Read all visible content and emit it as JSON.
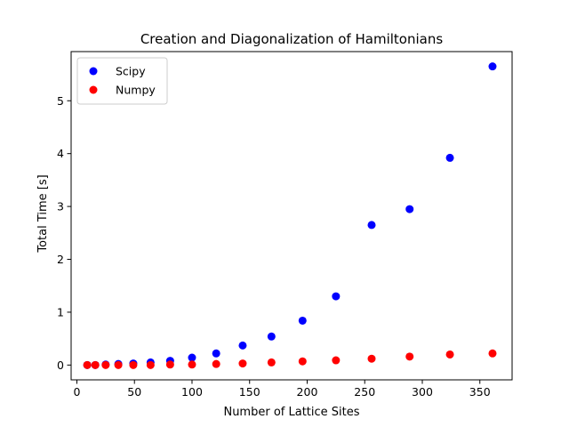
{
  "chart_data": {
    "type": "scatter",
    "title": "Creation and Diagonalization of Hamiltonians",
    "xlabel": "Number of Lattice Sites",
    "ylabel": "Total Time [s]",
    "xlim": [
      -5,
      378
    ],
    "ylim": [
      -0.28,
      5.93
    ],
    "xticks": [
      0,
      50,
      100,
      150,
      200,
      250,
      300,
      350
    ],
    "yticks": [
      0,
      1,
      2,
      3,
      4,
      5
    ],
    "grid": false,
    "legend_position": "upper-left",
    "series": [
      {
        "name": "Scipy",
        "color": "#0000ff",
        "points": [
          [
            9,
            0.0
          ],
          [
            16,
            0.0
          ],
          [
            25,
            0.01
          ],
          [
            36,
            0.02
          ],
          [
            49,
            0.03
          ],
          [
            64,
            0.05
          ],
          [
            81,
            0.08
          ],
          [
            100,
            0.14
          ],
          [
            121,
            0.22
          ],
          [
            144,
            0.37
          ],
          [
            169,
            0.54
          ],
          [
            196,
            0.84
          ],
          [
            225,
            1.3
          ],
          [
            256,
            2.65
          ],
          [
            289,
            2.95
          ],
          [
            324,
            3.92
          ],
          [
            361,
            5.65
          ]
        ]
      },
      {
        "name": "Numpy",
        "color": "#ff0000",
        "points": [
          [
            9,
            0.0
          ],
          [
            16,
            0.0
          ],
          [
            25,
            0.0
          ],
          [
            36,
            0.0
          ],
          [
            49,
            0.0
          ],
          [
            64,
            0.0
          ],
          [
            81,
            0.01
          ],
          [
            100,
            0.01
          ],
          [
            121,
            0.02
          ],
          [
            144,
            0.03
          ],
          [
            169,
            0.05
          ],
          [
            196,
            0.07
          ],
          [
            225,
            0.09
          ],
          [
            256,
            0.12
          ],
          [
            289,
            0.16
          ],
          [
            324,
            0.2
          ],
          [
            361,
            0.22
          ]
        ]
      }
    ]
  }
}
